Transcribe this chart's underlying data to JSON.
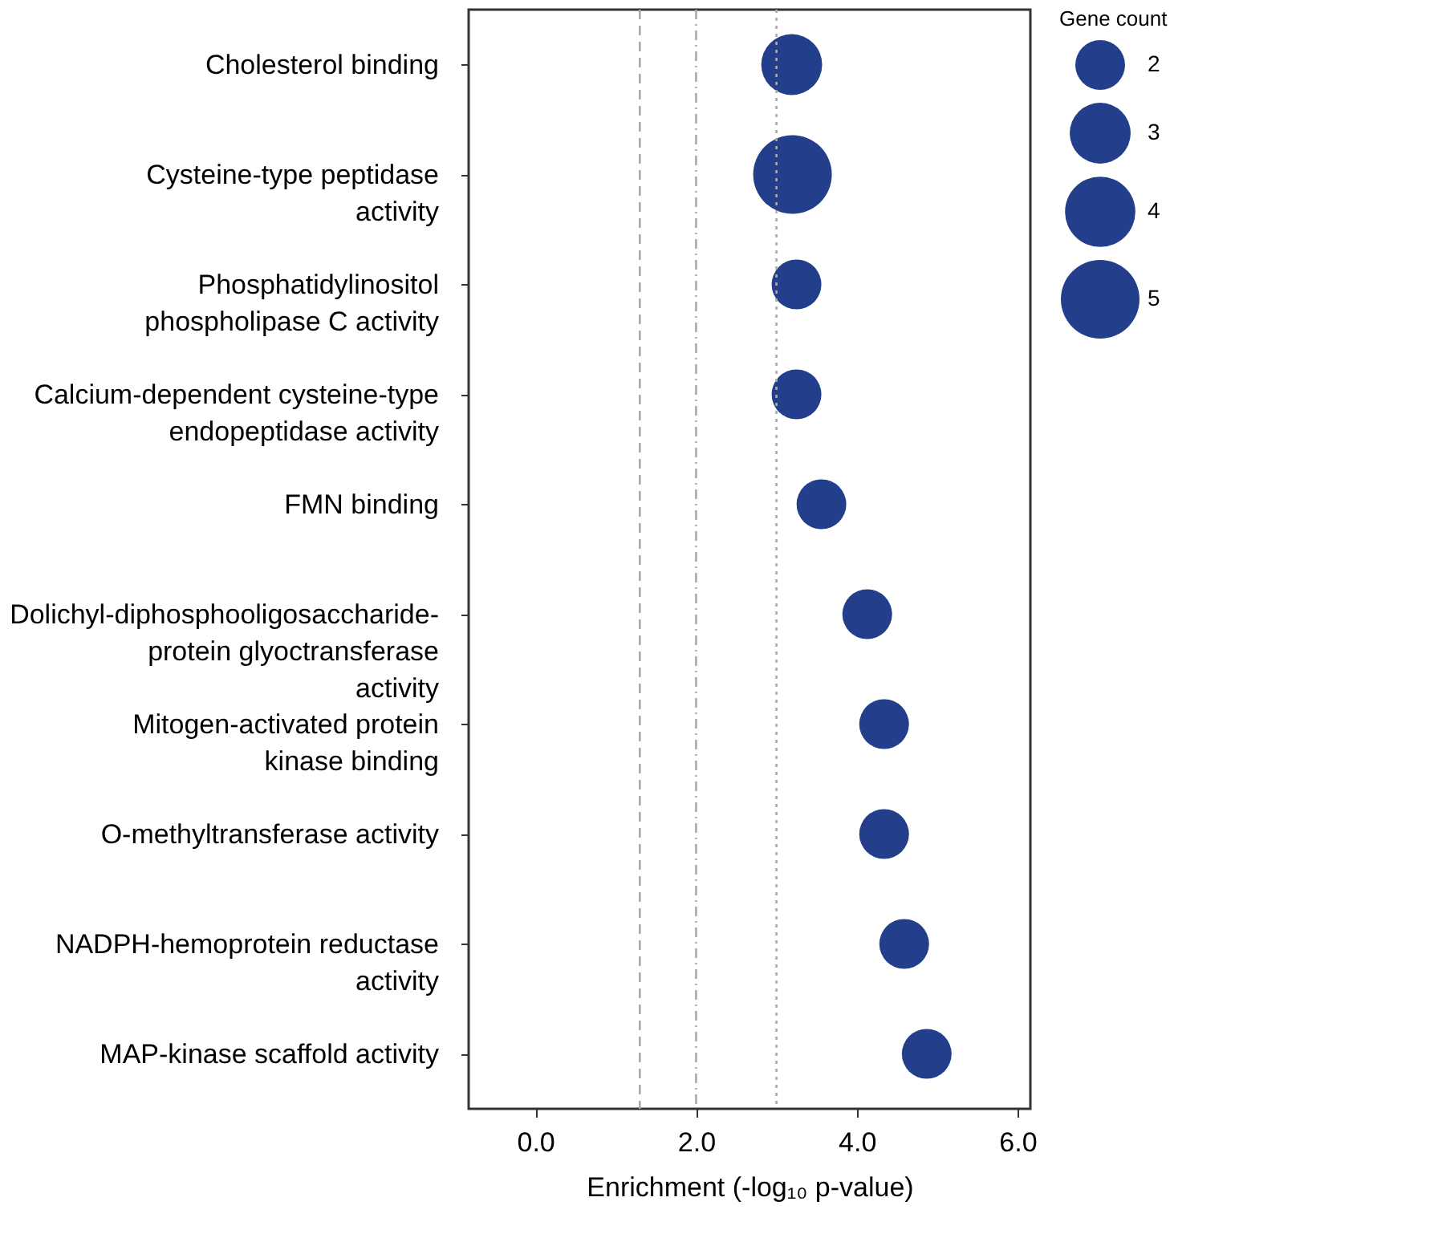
{
  "chart_data": {
    "type": "bubble",
    "categories": [
      "Cholesterol binding",
      "Cysteine-type peptidase activity",
      "Phosphatidylinositol phospholipase C activity",
      "Calcium-dependent cysteine-type endopeptidase activity",
      "FMN binding",
      "Dolichyl-diphosphooligosaccharide- protein glyoctransferase activity",
      "Mitogen-activated protein kinase binding",
      "O-methyltransferase activity",
      "NADPH-hemoprotein reductase activity",
      "MAP-kinase scaffold activity"
    ],
    "orientation": "horizontal",
    "series": [
      {
        "color": "#233f8c",
        "values": [
          3.19,
          3.2,
          3.25,
          3.25,
          3.56,
          4.13,
          4.34,
          4.34,
          4.59,
          4.87
        ],
        "sizes": [
          3,
          5,
          2,
          2,
          2,
          2,
          2,
          2,
          2,
          2
        ]
      }
    ],
    "size_legend": [
      2,
      3,
      4,
      5
    ],
    "legend_title": "Gene count",
    "xlabel": "Enrichment (-log₁₀ p-value)",
    "xlim": [
      -0.83,
      6.16
    ],
    "xticks": [
      {
        "value": 0,
        "label": "0.0"
      },
      {
        "value": 2,
        "label": "2.0"
      },
      {
        "value": 4,
        "label": "4.0"
      },
      {
        "value": 6,
        "label": "6.0"
      }
    ],
    "grid": false,
    "ref_lines": [
      {
        "axis": "x",
        "value": 1.3,
        "color": "#aaaaaa",
        "line_style": "dashed"
      },
      {
        "axis": "x",
        "value": 2.0,
        "color": "#aaaaaa",
        "line_style": "dashdot"
      },
      {
        "axis": "x",
        "value": 3.0,
        "color": "#aaaaaa",
        "line_style": "dotted"
      }
    ]
  }
}
